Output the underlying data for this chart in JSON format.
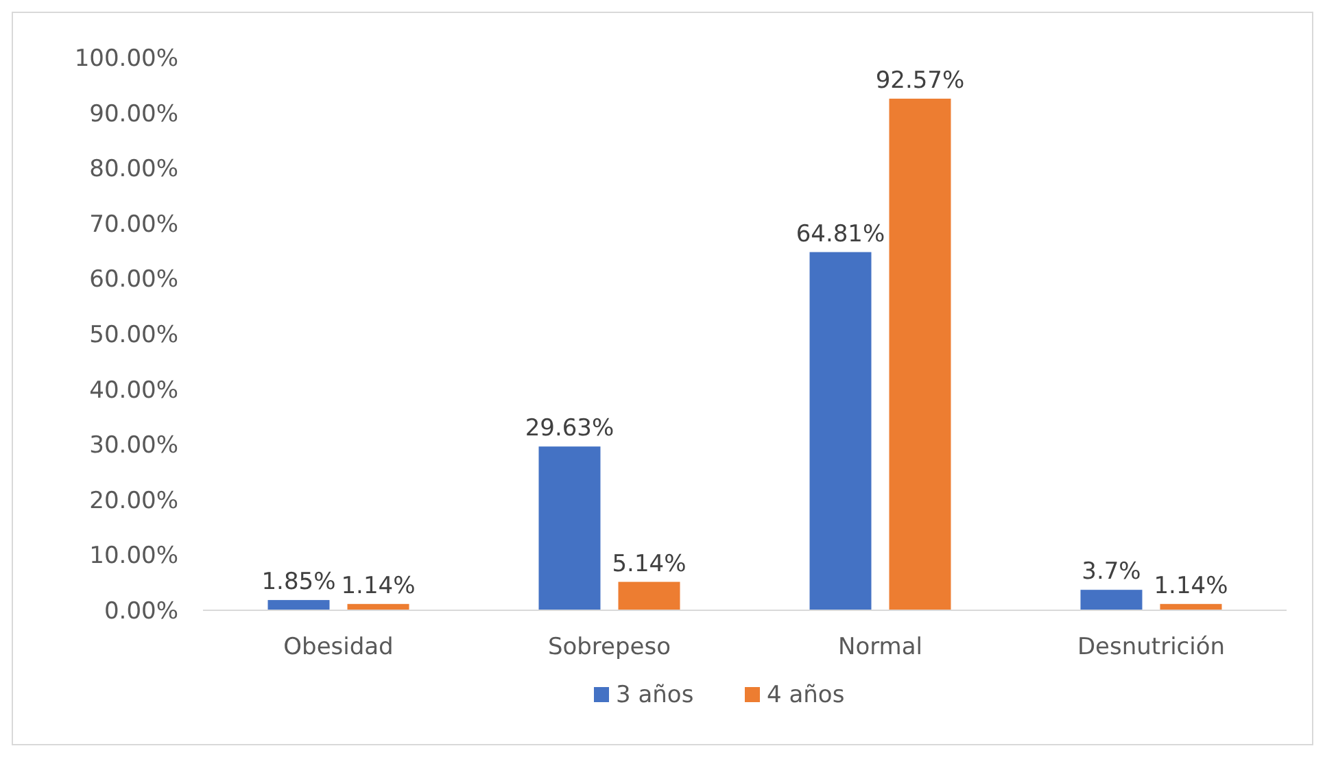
{
  "chart_data": {
    "type": "bar",
    "categories": [
      "Obesidad",
      "Sobrepeso",
      "Normal",
      "Desnutrición"
    ],
    "series": [
      {
        "name": "3 años",
        "color": "#4472c4",
        "values": [
          1.85,
          29.63,
          64.81,
          3.7
        ],
        "value_labels": [
          "1.85%",
          "29.63%",
          "64.81%",
          "3.7%"
        ]
      },
      {
        "name": "4 años",
        "color": "#ed7d31",
        "values": [
          1.14,
          5.14,
          92.57,
          1.14
        ],
        "value_labels": [
          "1.14%",
          "5.14%",
          "92.57%",
          "1.14%"
        ]
      }
    ],
    "ylim": [
      0,
      100
    ],
    "yticks": [
      {
        "value": 0,
        "label": "0.00%"
      },
      {
        "value": 10,
        "label": "10.00%"
      },
      {
        "value": 20,
        "label": "20.00%"
      },
      {
        "value": 30,
        "label": "30.00%"
      },
      {
        "value": 40,
        "label": "40.00%"
      },
      {
        "value": 50,
        "label": "50.00%"
      },
      {
        "value": 60,
        "label": "60.00%"
      },
      {
        "value": 70,
        "label": "70.00%"
      },
      {
        "value": 80,
        "label": "80.00%"
      },
      {
        "value": 90,
        "label": "90.00%"
      },
      {
        "value": 100,
        "label": "100.00%"
      }
    ],
    "legend": "bottom"
  }
}
